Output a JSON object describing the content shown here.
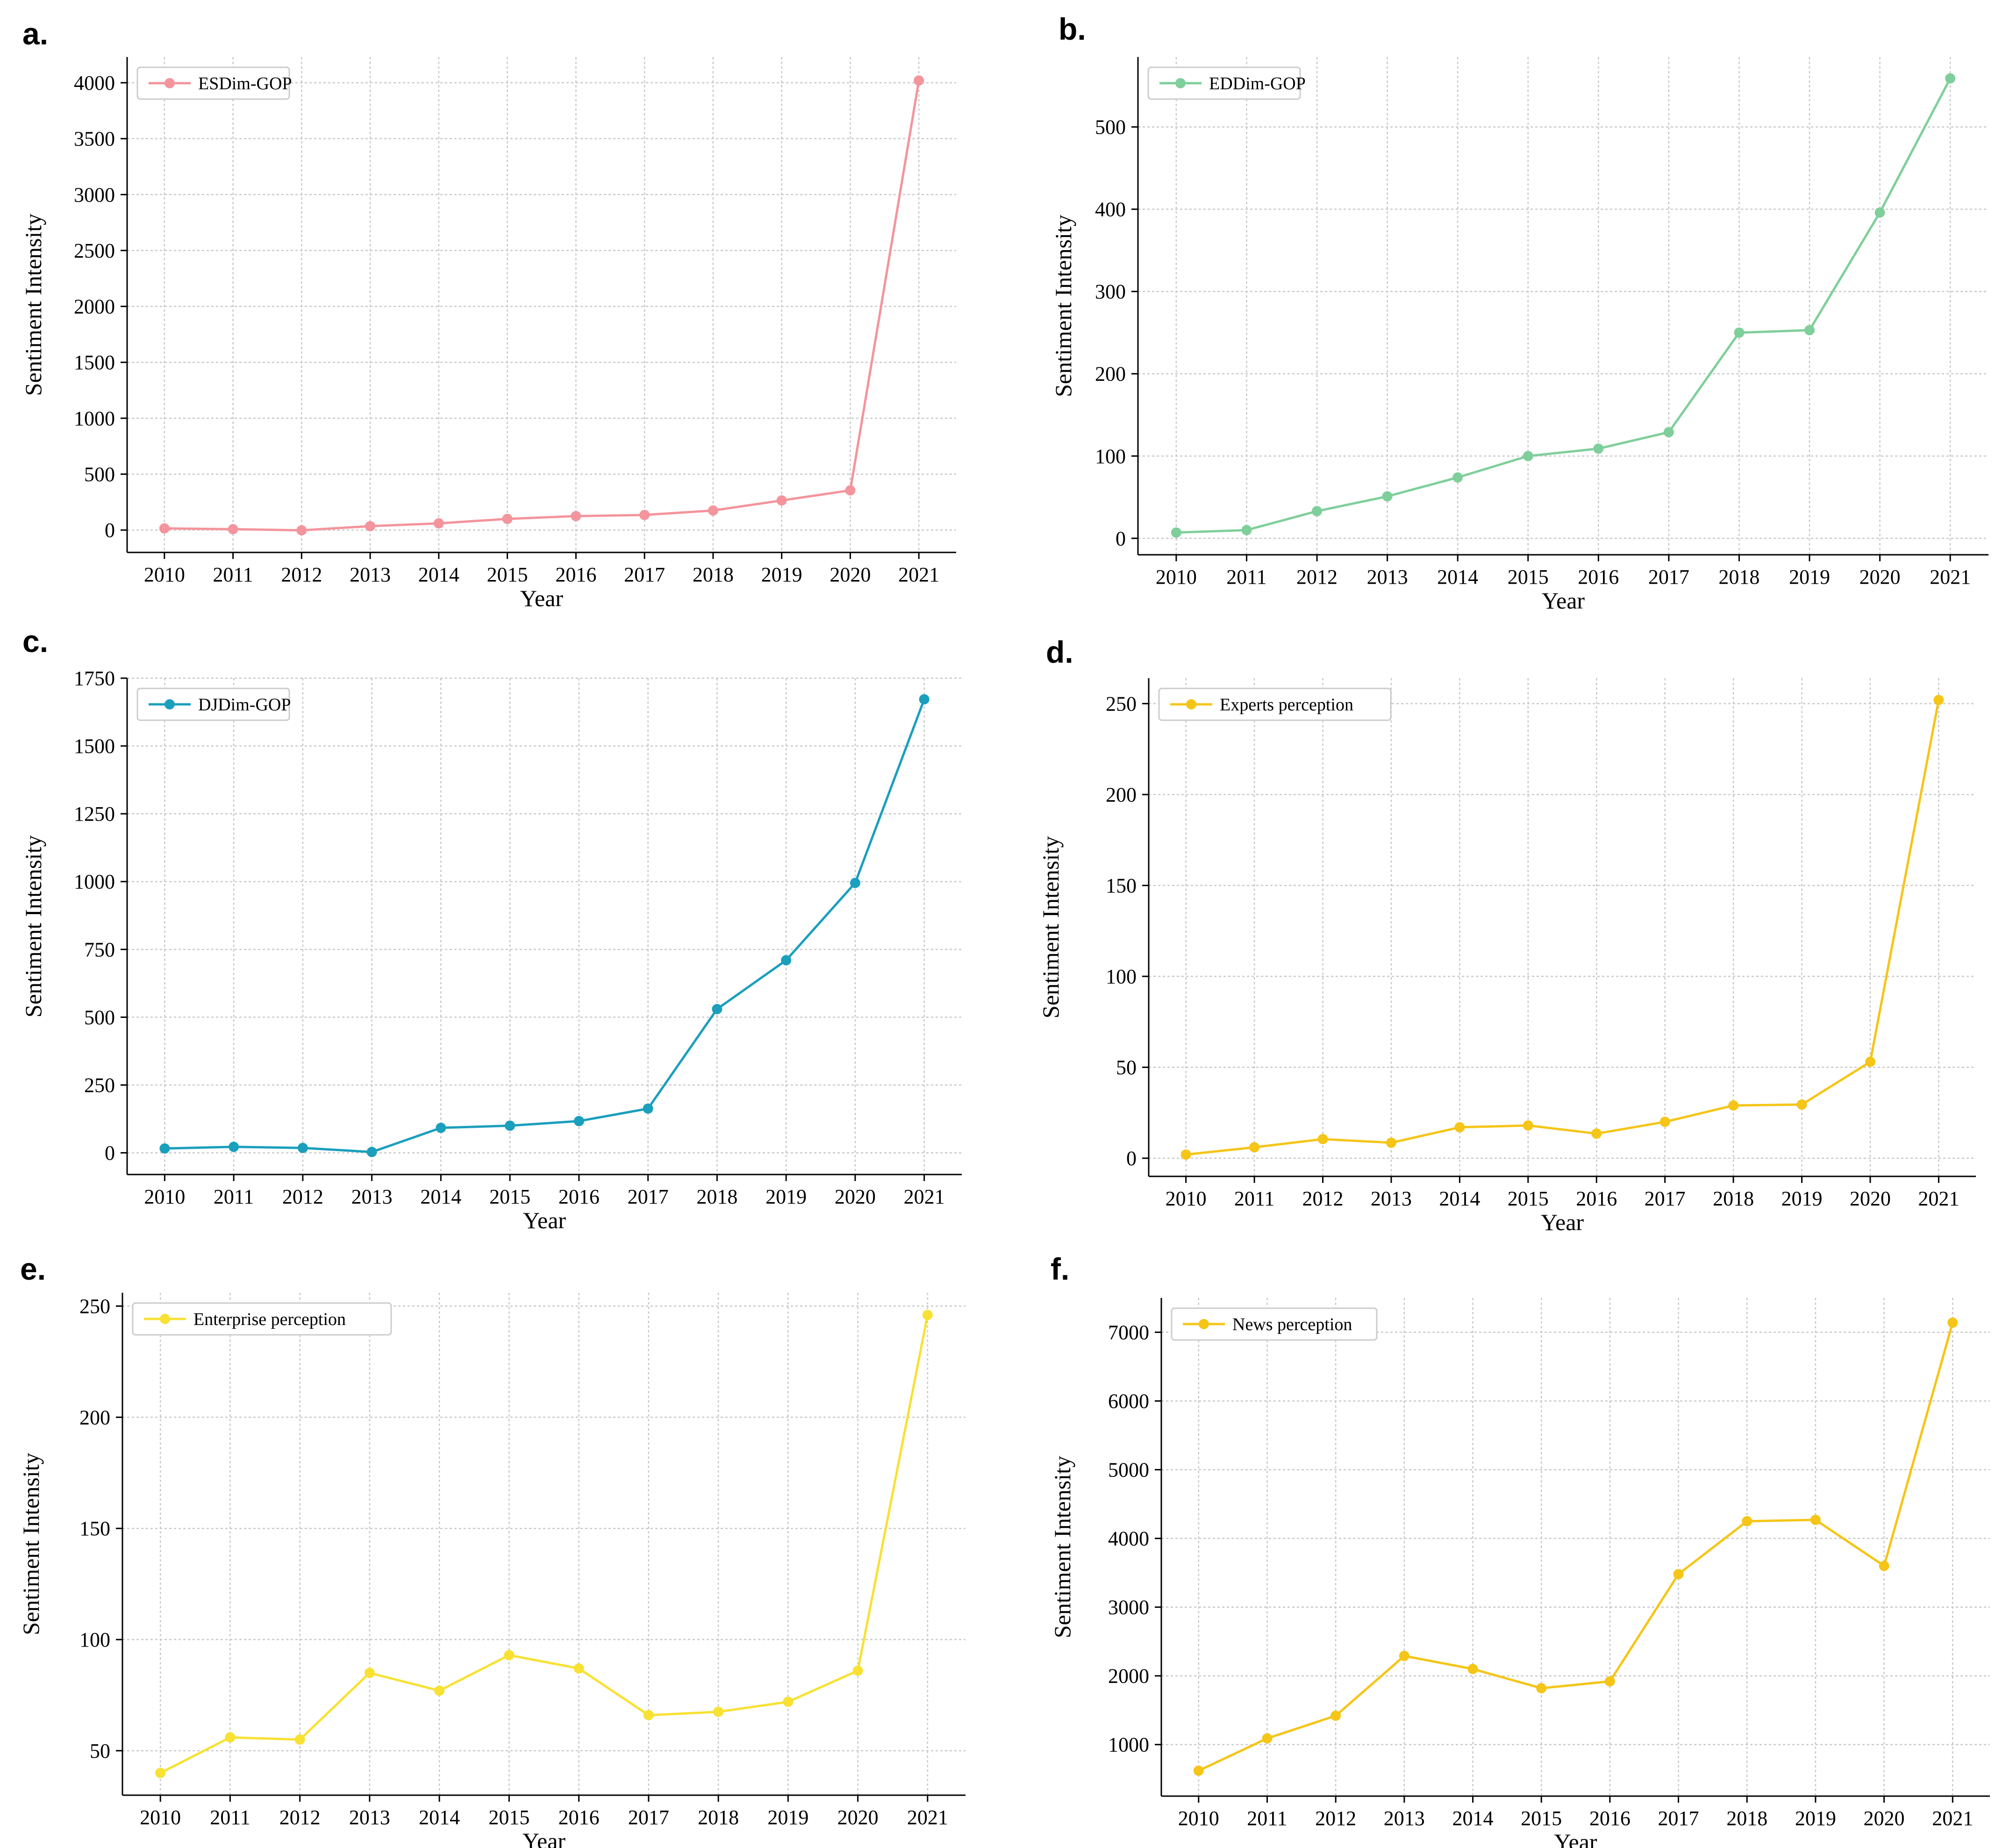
{
  "chart_data": [
    {
      "panel": "a.",
      "type": "line",
      "xlabel": "Year",
      "ylabel": "Sentiment Intensity",
      "x": [
        2010,
        2011,
        2012,
        2013,
        2014,
        2015,
        2016,
        2017,
        2018,
        2019,
        2020,
        2021
      ],
      "series": [
        {
          "name": "ESDim-GOP",
          "color": "#f4949c",
          "values": [
            15,
            8,
            -2,
            35,
            60,
            100,
            125,
            135,
            175,
            265,
            355,
            4020
          ]
        }
      ],
      "ylim": [
        -200,
        4230
      ],
      "yticks": [
        0,
        500,
        1000,
        1500,
        2000,
        2500,
        3000,
        3500,
        4000
      ],
      "grid": true,
      "legend": "top-left"
    },
    {
      "panel": "b.",
      "type": "line",
      "xlabel": "Year",
      "ylabel": "Sentiment Intensity",
      "x": [
        2010,
        2011,
        2012,
        2013,
        2014,
        2015,
        2016,
        2017,
        2018,
        2019,
        2020,
        2021
      ],
      "series": [
        {
          "name": "EDDim-GOP",
          "color": "#7fcf9a",
          "values": [
            7,
            10,
            33,
            51,
            74,
            100,
            109,
            129,
            250,
            253,
            396,
            559
          ]
        }
      ],
      "ylim": [
        -20,
        585
      ],
      "yticks": [
        0,
        100,
        200,
        300,
        400,
        500
      ],
      "grid": true,
      "legend": "top-left"
    },
    {
      "panel": "c.",
      "type": "line",
      "xlabel": "Year",
      "ylabel": "Sentiment Intensity",
      "x": [
        2010,
        2011,
        2012,
        2013,
        2014,
        2015,
        2016,
        2017,
        2018,
        2019,
        2020,
        2021
      ],
      "series": [
        {
          "name": "DJDim-GOP",
          "color": "#1a9fbd",
          "values": [
            16,
            22,
            18,
            3,
            92,
            100,
            117,
            163,
            530,
            710,
            995,
            1672
          ]
        }
      ],
      "ylim": [
        -80,
        1750
      ],
      "yticks": [
        0,
        250,
        500,
        750,
        1000,
        1250,
        1500,
        1750
      ],
      "grid": true,
      "legend": "top-left"
    },
    {
      "panel": "d.",
      "type": "line",
      "xlabel": "Year",
      "ylabel": "Sentiment Intensity",
      "x": [
        2010,
        2011,
        2012,
        2013,
        2014,
        2015,
        2016,
        2017,
        2018,
        2019,
        2020,
        2021
      ],
      "series": [
        {
          "name": "Experts perception",
          "color": "#f5c518",
          "values": [
            2,
            6,
            10.5,
            8.5,
            17,
            18,
            13.5,
            20,
            29,
            29.5,
            53,
            252
          ]
        }
      ],
      "ylim": [
        -10,
        264
      ],
      "yticks": [
        0,
        50,
        100,
        150,
        200,
        250
      ],
      "grid": true,
      "legend": "top-left"
    },
    {
      "panel": "e.",
      "type": "line",
      "xlabel": "Year",
      "ylabel": "Sentiment Intensity",
      "x": [
        2010,
        2011,
        2012,
        2013,
        2014,
        2015,
        2016,
        2017,
        2018,
        2019,
        2020,
        2021
      ],
      "series": [
        {
          "name": "Enterprise perception",
          "color": "#f8e133",
          "values": [
            40,
            56,
            55,
            85,
            77,
            93,
            87,
            66,
            67.5,
            72,
            86,
            246
          ]
        }
      ],
      "ylim": [
        30,
        256
      ],
      "yticks": [
        50,
        100,
        150,
        200,
        250
      ],
      "grid": true,
      "legend": "top-left"
    },
    {
      "panel": "f.",
      "type": "line",
      "xlabel": "Year",
      "ylabel": "Sentiment Intensity",
      "x": [
        2010,
        2011,
        2012,
        2013,
        2014,
        2015,
        2016,
        2017,
        2018,
        2019,
        2020,
        2021
      ],
      "series": [
        {
          "name": "News perception",
          "color": "#f5c518",
          "values": [
            620,
            1090,
            1420,
            2290,
            2100,
            1820,
            1920,
            3480,
            4250,
            4270,
            3600,
            7140
          ]
        }
      ],
      "ylim": [
        250,
        7500
      ],
      "yticks": [
        1000,
        2000,
        3000,
        4000,
        5000,
        6000,
        7000
      ],
      "grid": true,
      "legend": "top-left"
    }
  ]
}
